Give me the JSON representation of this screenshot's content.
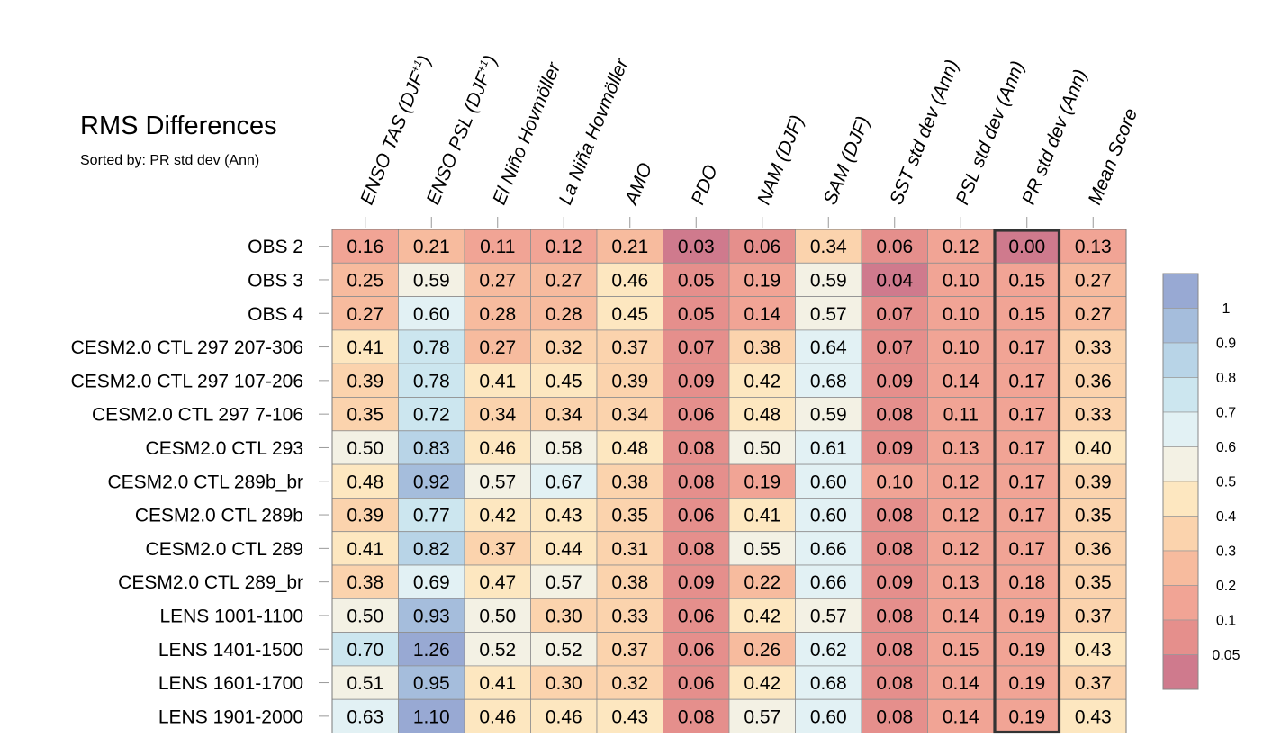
{
  "chart_data": {
    "type": "heatmap",
    "title": "RMS Differences",
    "subtitle": "Sorted by: PR std dev (Ann)",
    "columns": [
      "ENSO TAS (DJF+1)",
      "ENSO PSL (DJF+1)",
      "El Niño Hovmöller",
      "La Niña Hovmöller",
      "AMO",
      "PDO",
      "NAM (DJF)",
      "SAM (DJF)",
      "SST std dev (Ann)",
      "PSL std dev (Ann)",
      "PR std dev (Ann)",
      "Mean Score"
    ],
    "column_label_parts": [
      {
        "main": "ENSO TAS (DJF",
        "sup": "+1",
        "end": ")"
      },
      {
        "main": "ENSO PSL (DJF",
        "sup": "+1",
        "end": ")"
      },
      {
        "main": "El Niño Hovmöller",
        "sup": "",
        "end": ""
      },
      {
        "main": "La Niña Hovmöller",
        "sup": "",
        "end": ""
      },
      {
        "main": "AMO",
        "sup": "",
        "end": ""
      },
      {
        "main": "PDO",
        "sup": "",
        "end": ""
      },
      {
        "main": "NAM (DJF)",
        "sup": "",
        "end": ""
      },
      {
        "main": "SAM (DJF)",
        "sup": "",
        "end": ""
      },
      {
        "main": "SST std dev (Ann)",
        "sup": "",
        "end": ""
      },
      {
        "main": "PSL std dev (Ann)",
        "sup": "",
        "end": ""
      },
      {
        "main": "PR std dev (Ann)",
        "sup": "",
        "end": ""
      },
      {
        "main": "Mean Score",
        "sup": "",
        "end": ""
      }
    ],
    "rows": [
      "OBS 2",
      "OBS 3",
      "OBS 4",
      "CESM2.0 CTL 297 207-306",
      "CESM2.0 CTL 297 107-206",
      "CESM2.0 CTL 297 7-106",
      "CESM2.0 CTL 293",
      "CESM2.0 CTL 289b_br",
      "CESM2.0 CTL 289b",
      "CESM2.0 CTL 289",
      "CESM2.0 CTL 289_br",
      "LENS 1001-1100",
      "LENS 1401-1500",
      "LENS 1601-1700",
      "LENS 1901-2000"
    ],
    "values": [
      [
        "0.16",
        "0.21",
        "0.11",
        "0.12",
        "0.21",
        "0.03",
        "0.06",
        "0.34",
        "0.06",
        "0.12",
        "0.00",
        "0.13"
      ],
      [
        "0.25",
        "0.59",
        "0.27",
        "0.27",
        "0.46",
        "0.05",
        "0.19",
        "0.59",
        "0.04",
        "0.10",
        "0.15",
        "0.27"
      ],
      [
        "0.27",
        "0.60",
        "0.28",
        "0.28",
        "0.45",
        "0.05",
        "0.14",
        "0.57",
        "0.07",
        "0.10",
        "0.15",
        "0.27"
      ],
      [
        "0.41",
        "0.78",
        "0.27",
        "0.32",
        "0.37",
        "0.07",
        "0.38",
        "0.64",
        "0.07",
        "0.10",
        "0.17",
        "0.33"
      ],
      [
        "0.39",
        "0.78",
        "0.41",
        "0.45",
        "0.39",
        "0.09",
        "0.42",
        "0.68",
        "0.09",
        "0.14",
        "0.17",
        "0.36"
      ],
      [
        "0.35",
        "0.72",
        "0.34",
        "0.34",
        "0.34",
        "0.06",
        "0.48",
        "0.59",
        "0.08",
        "0.11",
        "0.17",
        "0.33"
      ],
      [
        "0.50",
        "0.83",
        "0.46",
        "0.58",
        "0.48",
        "0.08",
        "0.50",
        "0.61",
        "0.09",
        "0.13",
        "0.17",
        "0.40"
      ],
      [
        "0.48",
        "0.92",
        "0.57",
        "0.67",
        "0.38",
        "0.08",
        "0.19",
        "0.60",
        "0.10",
        "0.12",
        "0.17",
        "0.39"
      ],
      [
        "0.39",
        "0.77",
        "0.42",
        "0.43",
        "0.35",
        "0.06",
        "0.41",
        "0.60",
        "0.08",
        "0.12",
        "0.17",
        "0.35"
      ],
      [
        "0.41",
        "0.82",
        "0.37",
        "0.44",
        "0.31",
        "0.08",
        "0.55",
        "0.66",
        "0.08",
        "0.12",
        "0.17",
        "0.36"
      ],
      [
        "0.38",
        "0.69",
        "0.47",
        "0.57",
        "0.38",
        "0.09",
        "0.22",
        "0.66",
        "0.09",
        "0.13",
        "0.18",
        "0.35"
      ],
      [
        "0.50",
        "0.93",
        "0.50",
        "0.30",
        "0.33",
        "0.06",
        "0.42",
        "0.57",
        "0.08",
        "0.14",
        "0.19",
        "0.37"
      ],
      [
        "0.70",
        "1.26",
        "0.52",
        "0.52",
        "0.37",
        "0.06",
        "0.26",
        "0.62",
        "0.08",
        "0.15",
        "0.19",
        "0.43"
      ],
      [
        "0.51",
        "0.95",
        "0.41",
        "0.30",
        "0.32",
        "0.06",
        "0.42",
        "0.68",
        "0.08",
        "0.14",
        "0.19",
        "0.37"
      ],
      [
        "0.63",
        "1.10",
        "0.46",
        "0.46",
        "0.43",
        "0.08",
        "0.57",
        "0.60",
        "0.08",
        "0.14",
        "0.19",
        "0.43"
      ]
    ],
    "highlighted_column": "PR std dev (Ann)",
    "colorbar": {
      "levels": [
        0.05,
        0.1,
        0.2,
        0.3,
        0.4,
        0.5,
        0.6,
        0.7,
        0.8,
        0.9,
        1
      ],
      "labels": [
        "0.05",
        "0.1",
        "0.2",
        "0.3",
        "0.4",
        "0.5",
        "0.6",
        "0.7",
        "0.8",
        "0.9",
        "1"
      ],
      "colors": [
        "#cf7a8d",
        "#e58f8c",
        "#f1a495",
        "#f7bb9e",
        "#fbd3ad",
        "#fde7c0",
        "#f3f1e4",
        "#e2f1f4",
        "#cce6ef",
        "#b8d4e7",
        "#a5bddc",
        "#98a9d3"
      ]
    }
  }
}
